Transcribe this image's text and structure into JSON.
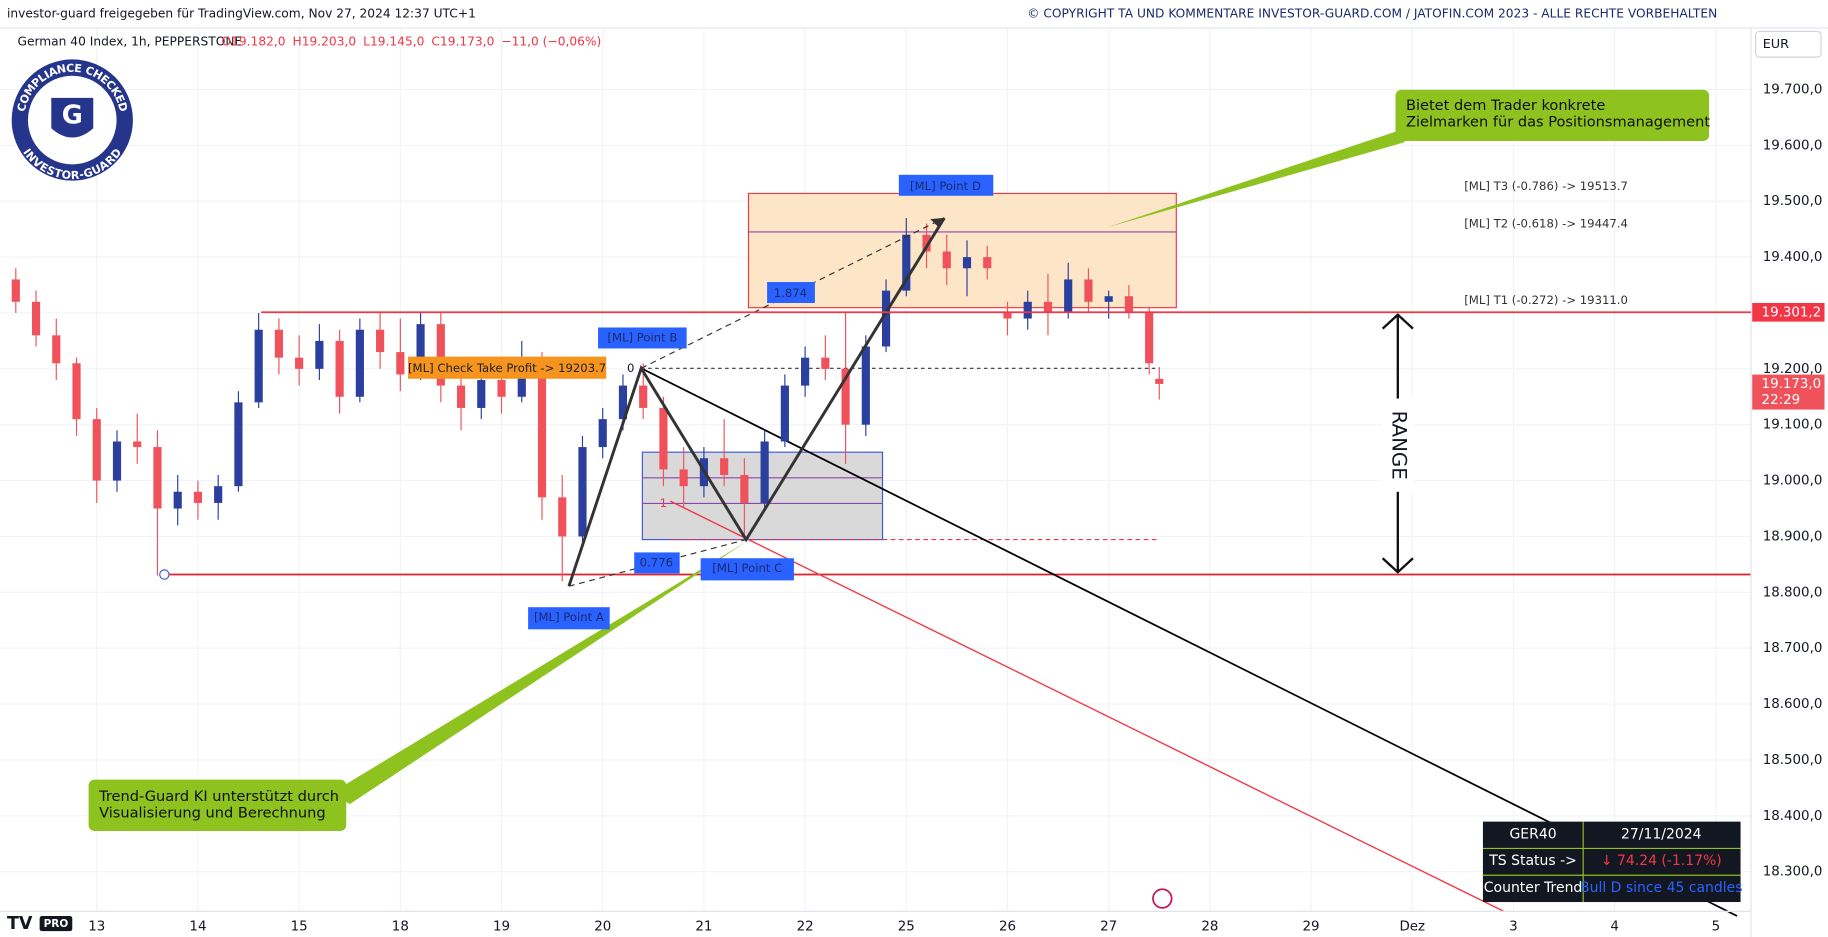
{
  "header": {
    "left": "investor-guard freigegeben für TradingView.com, Nov 27, 2024 12:37 UTC+1",
    "right": "© COPYRIGHT TA UND KOMMENTARE INVESTOR-GUARD.COM / JATOFIN.COM 2023 - ALLE RECHTE VORBEHALTEN"
  },
  "badge": {
    "top": "COMPLIANCE CHECKED",
    "bottom": "INVESTOR-GUARD",
    "letter": "G"
  },
  "logo": {
    "badge": "PRO"
  },
  "chart_data": {
    "type": "candlestick",
    "title": "German 40 Index, 1h, PEPPERSTONE",
    "ohlc_legend": [
      "O19.182,0",
      "H19.203,0",
      "L19.145,0",
      "C19.173,0",
      "−11,0 (−0,06%)"
    ],
    "currency": "EUR",
    "up_color": "#2a3f9e",
    "down_color": "#f0525c",
    "x": [
      -0.8,
      -0.6,
      -0.4,
      -0.2,
      0,
      0.2,
      0.4,
      0.6,
      0.8,
      1.0,
      1.2,
      1.4,
      1.6,
      1.8,
      2.0,
      2.2,
      2.4,
      2.6,
      2.8,
      3.0,
      3.2,
      3.4,
      3.6,
      3.8,
      4.0,
      4.2,
      4.4,
      4.6,
      4.8,
      5.0,
      5.2,
      5.4,
      5.6,
      5.8,
      6.0,
      6.2,
      6.4,
      6.6,
      6.8,
      7.0,
      7.2,
      7.4,
      7.6,
      7.8,
      8.0,
      8.2,
      8.4,
      8.6,
      8.8,
      9.0,
      9.2,
      9.4,
      9.6,
      9.8,
      10.0,
      10.2,
      10.4,
      10.5
    ],
    "open": [
      19360,
      19320,
      19260,
      19210,
      19110,
      19000,
      19070,
      19060,
      18950,
      18980,
      18960,
      18990,
      19140,
      19270,
      19220,
      19200,
      19250,
      19150,
      19270,
      19230,
      19190,
      19280,
      19170,
      19130,
      19180,
      19150,
      19220,
      18970,
      18900,
      19060,
      19110,
      19170,
      19130,
      19020,
      18990,
      19040,
      19010,
      18960,
      19070,
      19170,
      19220,
      19200,
      19100,
      19240,
      19340,
      19440,
      19410,
      19380,
      19400,
      19300,
      19290,
      19320,
      19300,
      19360,
      19320,
      19330,
      19300,
      19182
    ],
    "high": [
      19380,
      19340,
      19290,
      19220,
      19130,
      19090,
      19120,
      19090,
      19010,
      19000,
      19010,
      19160,
      19300,
      19290,
      19260,
      19280,
      19270,
      19290,
      19300,
      19290,
      19300,
      19300,
      19200,
      19210,
      19220,
      19250,
      19230,
      19010,
      19080,
      19130,
      19190,
      19210,
      19150,
      19060,
      19060,
      19110,
      19040,
      19090,
      19190,
      19240,
      19260,
      19300,
      19260,
      19360,
      19470,
      19460,
      19440,
      19430,
      19420,
      19320,
      19340,
      19370,
      19390,
      19380,
      19340,
      19350,
      19310,
      19203
    ],
    "low": [
      19300,
      19240,
      19180,
      19080,
      18960,
      18980,
      19030,
      18830,
      18920,
      18930,
      18930,
      18980,
      19130,
      19190,
      19170,
      19180,
      19120,
      19140,
      19200,
      19160,
      19180,
      19140,
      19090,
      19110,
      19120,
      19140,
      18930,
      18820,
      18890,
      19040,
      19090,
      19110,
      18990,
      18950,
      18970,
      18990,
      18900,
      18950,
      19060,
      19150,
      19180,
      19030,
      19080,
      19230,
      19330,
      19380,
      19350,
      19330,
      19360,
      19260,
      19270,
      19260,
      19290,
      19300,
      19290,
      19290,
      19190,
      19145
    ],
    "close": [
      19320,
      19260,
      19210,
      19110,
      19000,
      19070,
      19060,
      18950,
      18980,
      18960,
      18990,
      19140,
      19270,
      19220,
      19200,
      19250,
      19150,
      19270,
      19230,
      19190,
      19280,
      19170,
      19130,
      19180,
      19150,
      19220,
      18970,
      18900,
      19060,
      19110,
      19170,
      19130,
      19020,
      18990,
      19040,
      19010,
      18960,
      19070,
      19170,
      19220,
      19200,
      19100,
      19240,
      19340,
      19440,
      19410,
      19380,
      19400,
      19380,
      19290,
      19320,
      19300,
      19360,
      19320,
      19330,
      19300,
      19210,
      19173
    ],
    "xlim": [
      -0.864,
      16.325
    ],
    "xticks": [
      {
        "value": 0,
        "label": "13"
      },
      {
        "value": 1,
        "label": "14"
      },
      {
        "value": 2,
        "label": "15"
      },
      {
        "value": 3,
        "label": "18"
      },
      {
        "value": 4,
        "label": "19"
      },
      {
        "value": 5,
        "label": "20"
      },
      {
        "value": 6,
        "label": "21"
      },
      {
        "value": 7,
        "label": "22"
      },
      {
        "value": 8,
        "label": "25"
      },
      {
        "value": 9,
        "label": "26"
      },
      {
        "value": 10,
        "label": "27"
      },
      {
        "value": 11,
        "label": "28"
      },
      {
        "value": 12,
        "label": "29"
      },
      {
        "value": 13,
        "label": "Dez"
      },
      {
        "value": 14,
        "label": "3"
      },
      {
        "value": 15,
        "label": "4"
      },
      {
        "value": 16,
        "label": "5"
      }
    ],
    "ylim": [
      18229,
      19808
    ],
    "yticks": [
      {
        "value": 18300,
        "label": "18.300,0"
      },
      {
        "value": 18400,
        "label": "18.400,0"
      },
      {
        "value": 18500,
        "label": "18.500,0"
      },
      {
        "value": 18600,
        "label": "18.600,0"
      },
      {
        "value": 18700,
        "label": "18.700,0"
      },
      {
        "value": 18800,
        "label": "18.800,0"
      },
      {
        "value": 18900,
        "label": "18.900,0"
      },
      {
        "value": 19000,
        "label": "19.000,0"
      },
      {
        "value": 19100,
        "label": "19.100,0"
      },
      {
        "value": 19200,
        "label": "19.200,0"
      },
      {
        "value": 19300,
        "label": "19.300,0"
      },
      {
        "value": 19400,
        "label": "19.400,0"
      },
      {
        "value": 19500,
        "label": "19.500,0"
      },
      {
        "value": 19600,
        "label": "19.600,0"
      },
      {
        "value": 19700,
        "label": "19.700,0"
      }
    ],
    "price_tags": [
      {
        "value": 19301.2,
        "label": "19.301,2",
        "color": "#f23645",
        "line": true
      },
      {
        "value": 19173,
        "label": "19.173,0",
        "sub": "22:29",
        "color": "#f0525c",
        "line": false
      }
    ]
  },
  "annotations": {
    "point_a": "[ML] Point A",
    "point_b": "[ML] Point B",
    "point_c": "[ML] Point C",
    "point_d": "[ML] Point D",
    "ratio_bd": "1.874",
    "ratio_ac": "0.776",
    "zero": "0",
    "one": "1",
    "take_profit": "[ML] Check Take Profit -> 19203.7",
    "t3": "[ML] T3 (-0.786) -> 19513.7",
    "t2": "[ML] T2 (-0.618) -> 19447.4",
    "t1": "[ML] T1 (-0.272) -> 19311.0",
    "range": "RANGE",
    "callout_top": [
      "Bietet dem Trader konkrete",
      "Zielmarken für das Positionsmanagement"
    ],
    "callout_bottom": [
      "Trend-Guard KI unterstützt durch",
      "Visualisierung und Berechnung"
    ]
  },
  "table": {
    "rows": [
      [
        "GER40",
        "27/11/2024"
      ],
      [
        "TS Status ->",
        "↓ 74.24 (-1.17%)"
      ],
      [
        "Counter Trend",
        "Bull D since 45 candles"
      ]
    ]
  }
}
